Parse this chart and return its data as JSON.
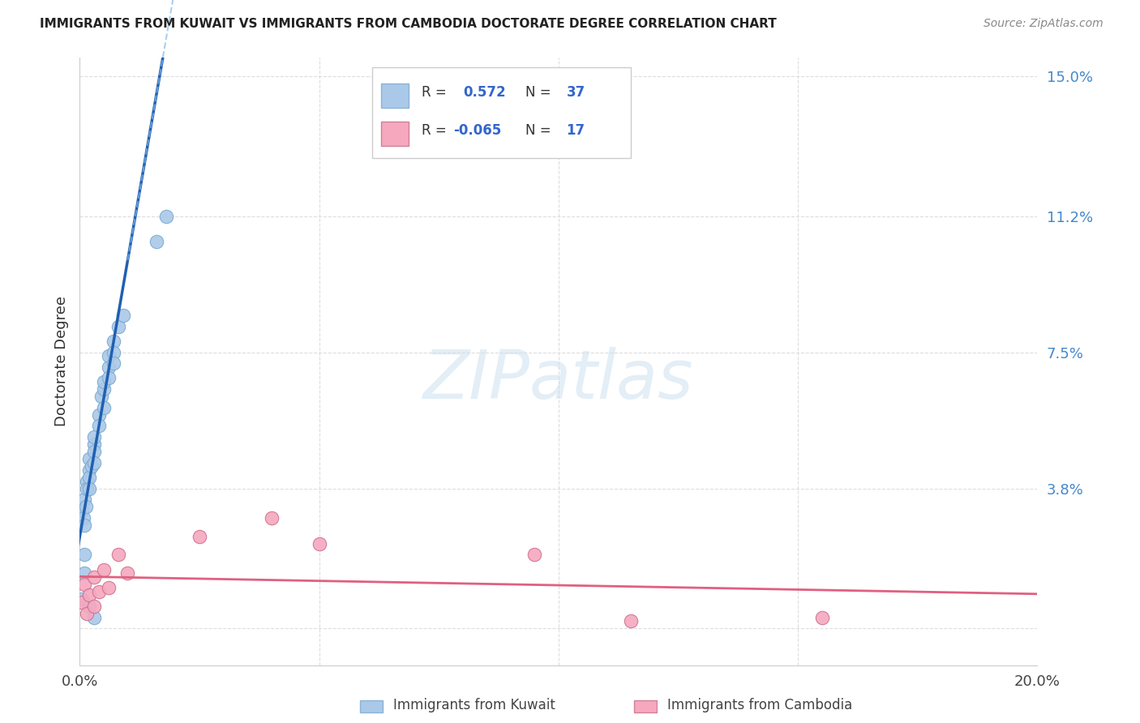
{
  "title": "IMMIGRANTS FROM KUWAIT VS IMMIGRANTS FROM CAMBODIA DOCTORATE DEGREE CORRELATION CHART",
  "source": "Source: ZipAtlas.com",
  "ylabel": "Doctorate Degree",
  "xlim": [
    0.0,
    0.2
  ],
  "ylim": [
    -0.01,
    0.155
  ],
  "xtick_positions": [
    0.0,
    0.05,
    0.1,
    0.15,
    0.2
  ],
  "xticklabels": [
    "0.0%",
    "",
    "",
    "",
    "20.0%"
  ],
  "ytick_positions": [
    0.0,
    0.038,
    0.075,
    0.112,
    0.15
  ],
  "ytick_labels": [
    "",
    "3.8%",
    "7.5%",
    "11.2%",
    "15.0%"
  ],
  "kuwait_color": "#aac8e8",
  "cambodia_color": "#f5a8be",
  "kuwait_line_color": "#2060b0",
  "cambodia_line_color": "#e06080",
  "kuwait_R": 0.572,
  "kuwait_N": 37,
  "cambodia_R": -0.065,
  "cambodia_N": 17,
  "watermark": "ZIPatlas",
  "background_color": "#ffffff",
  "grid_color": "#dddddd",
  "kuwait_x": [
    0.0005,
    0.0008,
    0.001,
    0.001,
    0.0012,
    0.0015,
    0.0015,
    0.002,
    0.002,
    0.002,
    0.002,
    0.0025,
    0.003,
    0.003,
    0.003,
    0.003,
    0.004,
    0.004,
    0.0045,
    0.005,
    0.005,
    0.005,
    0.006,
    0.006,
    0.006,
    0.007,
    0.007,
    0.008,
    0.009,
    0.001,
    0.001,
    0.0005,
    0.002,
    0.003,
    0.007,
    0.018,
    0.016
  ],
  "kuwait_y": [
    0.032,
    0.03,
    0.035,
    0.028,
    0.033,
    0.04,
    0.038,
    0.043,
    0.041,
    0.038,
    0.046,
    0.044,
    0.05,
    0.048,
    0.045,
    0.052,
    0.058,
    0.055,
    0.063,
    0.06,
    0.065,
    0.067,
    0.071,
    0.068,
    0.074,
    0.078,
    0.075,
    0.082,
    0.085,
    0.02,
    0.015,
    0.008,
    0.006,
    0.003,
    0.072,
    0.112,
    0.105
  ],
  "cambodia_x": [
    0.0005,
    0.001,
    0.0015,
    0.002,
    0.003,
    0.003,
    0.004,
    0.005,
    0.006,
    0.008,
    0.01,
    0.025,
    0.05,
    0.095,
    0.155,
    0.115,
    0.04
  ],
  "cambodia_y": [
    0.007,
    0.012,
    0.004,
    0.009,
    0.014,
    0.006,
    0.01,
    0.016,
    0.011,
    0.02,
    0.015,
    0.025,
    0.023,
    0.02,
    0.003,
    0.002,
    0.03
  ]
}
